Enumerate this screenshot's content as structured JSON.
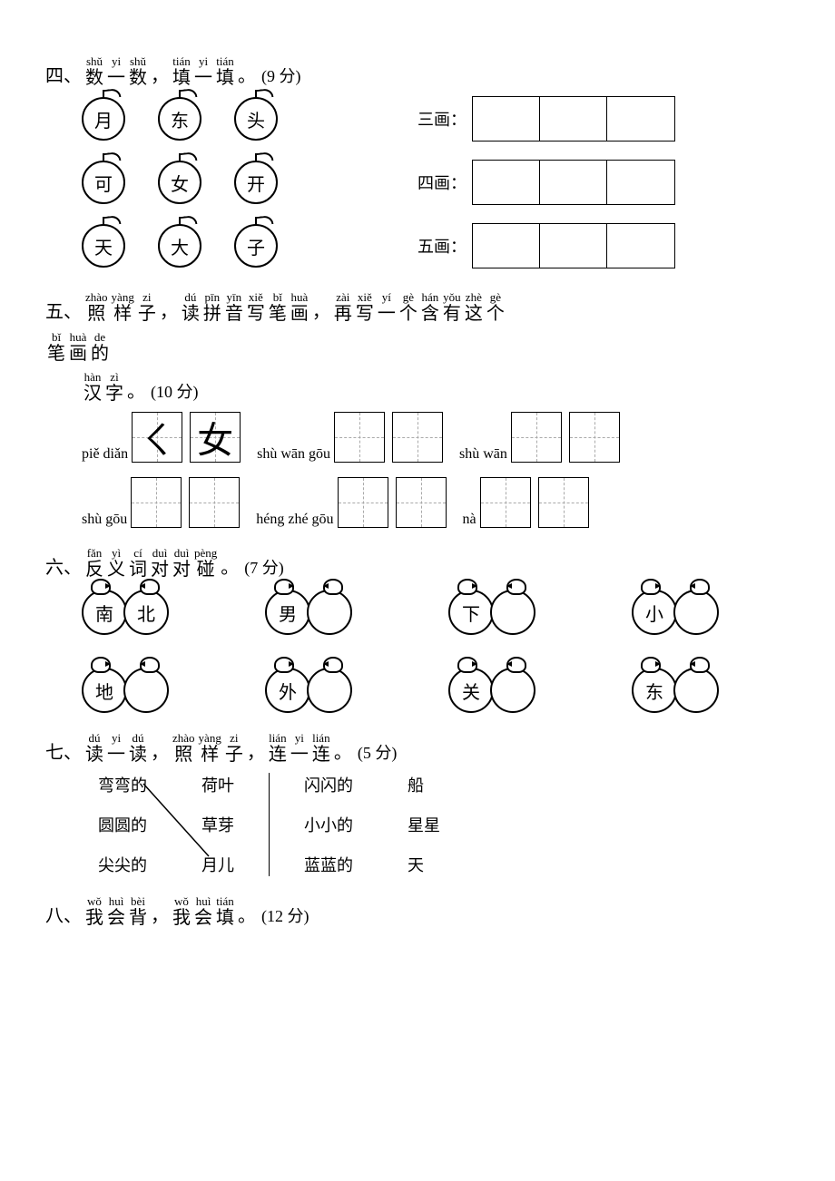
{
  "section4": {
    "number": "四、",
    "title_ruby": [
      {
        "pinyin": "shǔ",
        "zh": "数"
      },
      {
        "pinyin": "yi",
        "zh": "一"
      },
      {
        "pinyin": "shǔ",
        "zh": "数"
      },
      {
        "pinyin": "",
        "zh": "，"
      },
      {
        "pinyin": "tián",
        "zh": "填"
      },
      {
        "pinyin": "yi",
        "zh": "一"
      },
      {
        "pinyin": "tián",
        "zh": "填"
      },
      {
        "pinyin": "",
        "zh": "。"
      }
    ],
    "points": "(9 分)",
    "rows": [
      {
        "apples": [
          "月",
          "东",
          "头"
        ],
        "label": "三画：",
        "boxes": 3
      },
      {
        "apples": [
          "可",
          "女",
          "开"
        ],
        "label": "四画：",
        "boxes": 3
      },
      {
        "apples": [
          "天",
          "大",
          "子"
        ],
        "label": "五画：",
        "boxes": 3
      }
    ]
  },
  "section5": {
    "number": "五、",
    "title_ruby": [
      {
        "pinyin": "zhào",
        "zh": "照"
      },
      {
        "pinyin": "yàng",
        "zh": "样"
      },
      {
        "pinyin": "zi",
        "zh": "子"
      },
      {
        "pinyin": "",
        "zh": "，"
      },
      {
        "pinyin": "dú",
        "zh": "读"
      },
      {
        "pinyin": "pīn",
        "zh": "拼"
      },
      {
        "pinyin": "yīn",
        "zh": "音"
      },
      {
        "pinyin": "xiě",
        "zh": "写"
      },
      {
        "pinyin": "bǐ",
        "zh": "笔"
      },
      {
        "pinyin": "huà",
        "zh": "画"
      },
      {
        "pinyin": "",
        "zh": "，"
      },
      {
        "pinyin": "zài",
        "zh": "再"
      },
      {
        "pinyin": "xiě",
        "zh": "写"
      },
      {
        "pinyin": "yí",
        "zh": "一"
      },
      {
        "pinyin": "gè",
        "zh": "个"
      },
      {
        "pinyin": "hán",
        "zh": "含"
      },
      {
        "pinyin": "yǒu",
        "zh": "有"
      },
      {
        "pinyin": "zhè",
        "zh": "这"
      },
      {
        "pinyin": "gè",
        "zh": "个"
      }
    ],
    "title_ruby2": [
      {
        "pinyin": "bǐ",
        "zh": "笔"
      },
      {
        "pinyin": "huà",
        "zh": "画"
      },
      {
        "pinyin": "de",
        "zh": "的"
      }
    ],
    "title_ruby3": [
      {
        "pinyin": "hàn",
        "zh": "汉"
      },
      {
        "pinyin": "zì",
        "zh": "字"
      },
      {
        "pinyin": "",
        "zh": "。"
      }
    ],
    "points": "(10 分)",
    "row1": [
      {
        "label": "piě diǎn",
        "filled": [
          "ㄑ",
          "女"
        ]
      },
      {
        "label": "shù wān gōu",
        "filled": [
          "",
          ""
        ]
      },
      {
        "label": "shù wān",
        "filled": [
          "",
          ""
        ]
      }
    ],
    "row2": [
      {
        "label": "shù gōu",
        "filled": [
          "",
          ""
        ]
      },
      {
        "label": "héng zhé gōu",
        "filled": [
          "",
          ""
        ]
      },
      {
        "label": "nà",
        "filled": [
          "",
          ""
        ]
      }
    ]
  },
  "section6": {
    "number": "六、",
    "title_ruby": [
      {
        "pinyin": "fǎn",
        "zh": "反"
      },
      {
        "pinyin": "yì",
        "zh": "义"
      },
      {
        "pinyin": "cí",
        "zh": "词"
      },
      {
        "pinyin": "duì",
        "zh": "对"
      },
      {
        "pinyin": "duì",
        "zh": "对"
      },
      {
        "pinyin": "pèng",
        "zh": "碰"
      },
      {
        "pinyin": "",
        "zh": "。"
      }
    ],
    "points": "(7 分)",
    "rows": [
      [
        [
          "南",
          "北"
        ],
        [
          "男",
          ""
        ],
        [
          "下",
          ""
        ],
        [
          "小",
          ""
        ]
      ],
      [
        [
          "地",
          ""
        ],
        [
          "外",
          ""
        ],
        [
          "关",
          ""
        ],
        [
          "东",
          ""
        ]
      ]
    ]
  },
  "section7": {
    "number": "七、",
    "title_ruby": [
      {
        "pinyin": "dú",
        "zh": "读"
      },
      {
        "pinyin": "yi",
        "zh": "一"
      },
      {
        "pinyin": "dú",
        "zh": "读"
      },
      {
        "pinyin": "",
        "zh": "，"
      },
      {
        "pinyin": "zhào",
        "zh": "照"
      },
      {
        "pinyin": "yàng",
        "zh": "样"
      },
      {
        "pinyin": "zi",
        "zh": "子"
      },
      {
        "pinyin": "",
        "zh": "，"
      },
      {
        "pinyin": "lián",
        "zh": "连"
      },
      {
        "pinyin": "yi",
        "zh": "一"
      },
      {
        "pinyin": "lián",
        "zh": "连"
      },
      {
        "pinyin": "",
        "zh": "。"
      }
    ],
    "points": "(5 分)",
    "left": {
      "a": [
        "弯弯的",
        "圆圆的",
        "尖尖的"
      ],
      "b": [
        "荷叶",
        "草芽",
        "月儿"
      ]
    },
    "right": {
      "a": [
        "闪闪的",
        "小小的",
        "蓝蓝的"
      ],
      "b": [
        "船",
        "星星",
        "天"
      ]
    },
    "example_line": {
      "from": 0,
      "to": 2
    }
  },
  "section8": {
    "number": "八、",
    "title_ruby": [
      {
        "pinyin": "wǒ",
        "zh": "我"
      },
      {
        "pinyin": "huì",
        "zh": "会"
      },
      {
        "pinyin": "bèi",
        "zh": "背"
      },
      {
        "pinyin": "",
        "zh": "，"
      },
      {
        "pinyin": "wǒ",
        "zh": "我"
      },
      {
        "pinyin": "huì",
        "zh": "会"
      },
      {
        "pinyin": "tián",
        "zh": "填"
      },
      {
        "pinyin": "",
        "zh": "。"
      }
    ],
    "points": "(12 分)"
  }
}
